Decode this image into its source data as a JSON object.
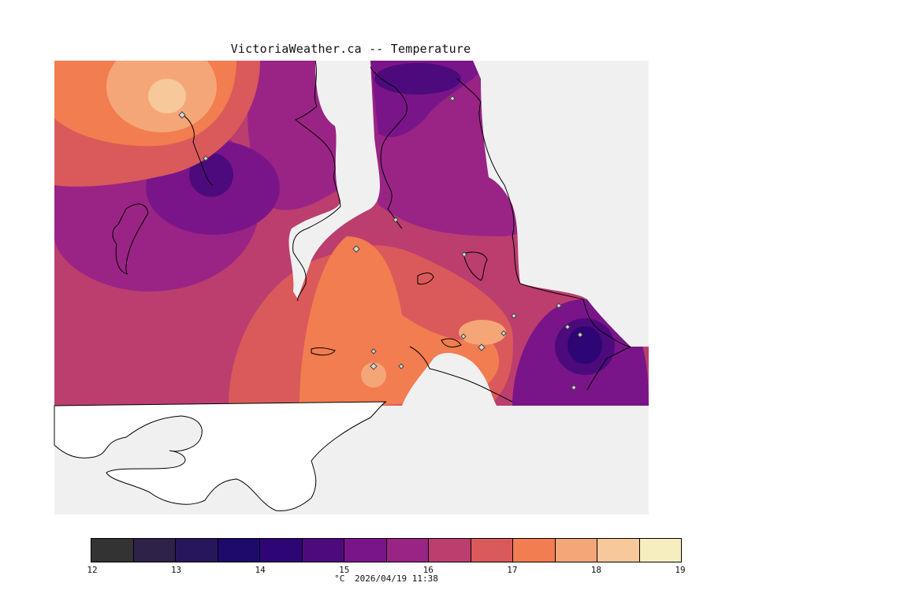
{
  "title": "VictoriaWeather.ca -- Temperature",
  "colorbar": {
    "colors": [
      "#333333",
      "#2e2248",
      "#27175a",
      "#1d0a6a",
      "#2d0575",
      "#4d0a7c",
      "#7a1589",
      "#9a2485",
      "#bb3e6e",
      "#da5a5b",
      "#f27d50",
      "#f5a678",
      "#f6c89a",
      "#f7eec0"
    ],
    "ticks": [
      "12",
      "13",
      "14",
      "15",
      "16",
      "17",
      "18",
      "19"
    ],
    "unit": "°C",
    "timestamp": "2026/04/19 11:38"
  },
  "station_icon": "diamond-icon"
}
